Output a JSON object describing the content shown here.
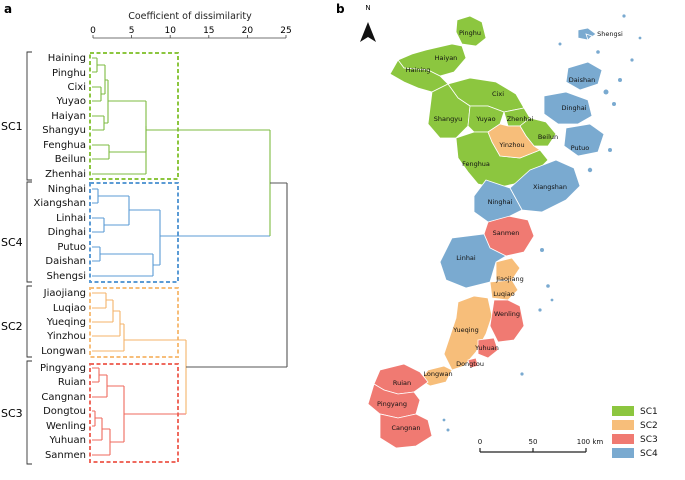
{
  "panel_a": {
    "letter": "a",
    "axis_title": "Coefficient of dissimilarity",
    "ticks": [
      0,
      5,
      10,
      15,
      20,
      25
    ],
    "xlim": [
      0,
      25
    ],
    "groups": [
      {
        "name": "SC1",
        "color": "#7dbb42",
        "cities": [
          "Haining",
          "Pinghu",
          "Cixi",
          "Yuyao",
          "Haiyan",
          "Shangyu",
          "Fenghua",
          "Beilun",
          "Zhenhai"
        ]
      },
      {
        "name": "SC4",
        "color": "#5b9bd5",
        "cities": [
          "Ninghai",
          "Xiangshan",
          "Linhai",
          "Dinghai",
          "Putuo",
          "Daishan",
          "Shengsi"
        ]
      },
      {
        "name": "SC2",
        "color": "#f4b36a",
        "cities": [
          "Jiaojiang",
          "Luqiao",
          "Yueqing",
          "Yinzhou",
          "Longwan"
        ]
      },
      {
        "name": "SC3",
        "color": "#ef6a5e",
        "cities": [
          "Pingyang",
          "Ruian",
          "Cangnan",
          "Dongtou",
          "Wenling",
          "Yuhuan",
          "Sanmen"
        ]
      }
    ]
  },
  "panel_b": {
    "letter": "b",
    "north": "N",
    "colors": {
      "SC1": "#8cc63f",
      "SC2": "#f7be7a",
      "SC3": "#f07a72",
      "SC4": "#7aaad0"
    },
    "map_labels": [
      {
        "text": "Pinghu",
        "group": "SC1"
      },
      {
        "text": "Haiyan",
        "group": "SC1"
      },
      {
        "text": "Haining",
        "group": "SC1"
      },
      {
        "text": "Cixi",
        "group": "SC1"
      },
      {
        "text": "Shangyu",
        "group": "SC1"
      },
      {
        "text": "Yuyao",
        "group": "SC1"
      },
      {
        "text": "Zhenhai",
        "group": "SC1"
      },
      {
        "text": "Beilun",
        "group": "SC1"
      },
      {
        "text": "Fenghua",
        "group": "SC1"
      },
      {
        "text": "Yinzhou",
        "group": "SC2"
      },
      {
        "text": "Shengsi",
        "group": "SC4"
      },
      {
        "text": "Daishan",
        "group": "SC4"
      },
      {
        "text": "Dinghai",
        "group": "SC4"
      },
      {
        "text": "Putuo",
        "group": "SC4"
      },
      {
        "text": "Xiangshan",
        "group": "SC4"
      },
      {
        "text": "Ninghai",
        "group": "SC4"
      },
      {
        "text": "Sanmen",
        "group": "SC3"
      },
      {
        "text": "Linhai",
        "group": "SC4"
      },
      {
        "text": "Jiaojiang",
        "group": "SC2"
      },
      {
        "text": "Luqiao",
        "group": "SC2"
      },
      {
        "text": "Wenling",
        "group": "SC3"
      },
      {
        "text": "Yueqing",
        "group": "SC2"
      },
      {
        "text": "Yuhuan",
        "group": "SC3"
      },
      {
        "text": "Dongtou",
        "group": "SC3"
      },
      {
        "text": "Longwan",
        "group": "SC2"
      },
      {
        "text": "Ruian",
        "group": "SC3"
      },
      {
        "text": "Pingyang",
        "group": "SC3"
      },
      {
        "text": "Cangnan",
        "group": "SC3"
      }
    ],
    "legend": [
      "SC1",
      "SC2",
      "SC3",
      "SC4"
    ],
    "scale": {
      "ticks": [
        "0",
        "50",
        "100 km"
      ]
    }
  }
}
